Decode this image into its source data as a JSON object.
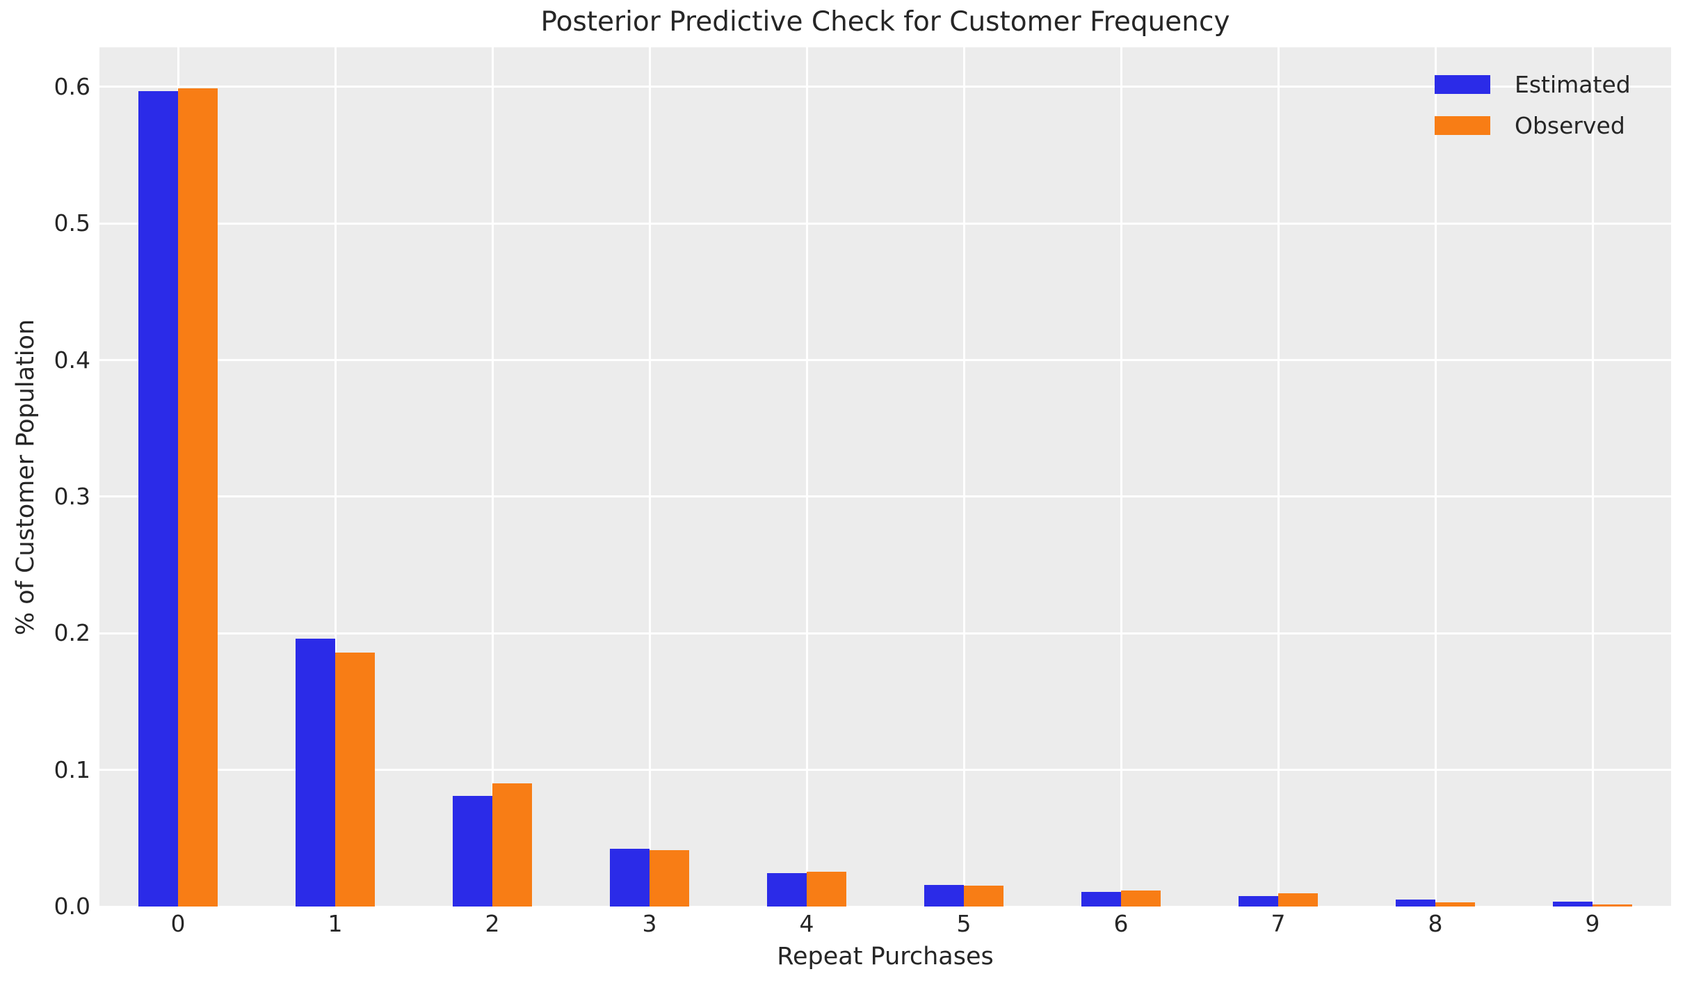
{
  "chart_data": {
    "type": "bar",
    "title": "Posterior Predictive Check for Customer Frequency",
    "xlabel": "Repeat Purchases",
    "ylabel": "% of Customer Population",
    "categories": [
      "0",
      "1",
      "2",
      "3",
      "4",
      "5",
      "6",
      "7",
      "8",
      "9"
    ],
    "series": [
      {
        "name": "Estimated",
        "color": "#2b2be8",
        "values": [
          0.597,
          0.196,
          0.081,
          0.0425,
          0.0245,
          0.016,
          0.0105,
          0.0075,
          0.0049,
          0.0036
        ]
      },
      {
        "name": "Observed",
        "color": "#f87d15",
        "values": [
          0.599,
          0.186,
          0.09,
          0.0415,
          0.0256,
          0.0154,
          0.0117,
          0.0095,
          0.0029,
          0.0015
        ]
      }
    ],
    "ylim": [
      0,
      0.629
    ],
    "yticks": [
      "0.0",
      "0.1",
      "0.2",
      "0.3",
      "0.4",
      "0.5",
      "0.6"
    ],
    "grid": true,
    "legend_position": "upper right",
    "plot_bg_color": "#ececec",
    "grid_color": "#ffffff",
    "text_color": "#262626",
    "figure_bg_color": "#ffffff"
  }
}
